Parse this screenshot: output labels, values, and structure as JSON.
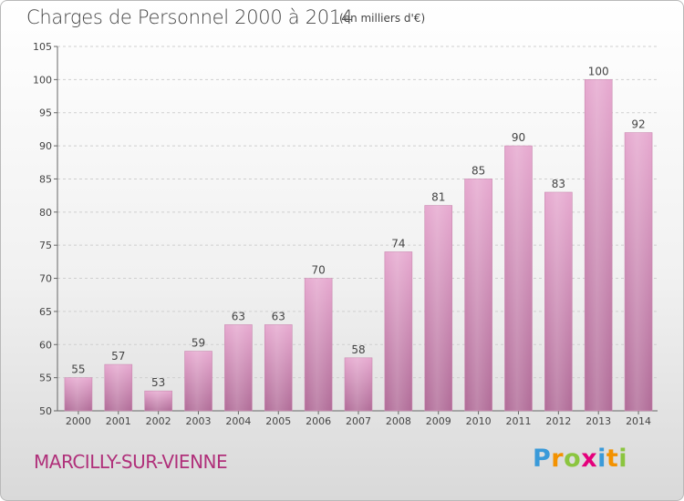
{
  "title": "Charges de Personnel 2000 à 2014",
  "subtitle": "(en milliers d'€)",
  "commune": "MARCILLY-SUR-VIENNE",
  "logo": {
    "letters": [
      "P",
      "r",
      "o",
      "x",
      "i",
      "t",
      "i"
    ],
    "colors": [
      "#3a9ad9",
      "#f39200",
      "#8bc53f",
      "#e4007c",
      "#3a9ad9",
      "#f39200",
      "#8bc53f"
    ]
  },
  "chart_data": {
    "type": "bar",
    "categories": [
      "2000",
      "2001",
      "2002",
      "2003",
      "2004",
      "2005",
      "2006",
      "2007",
      "2008",
      "2009",
      "2010",
      "2011",
      "2012",
      "2013",
      "2014"
    ],
    "values": [
      55,
      57,
      53,
      59,
      63,
      63,
      70,
      58,
      74,
      81,
      85,
      90,
      83,
      100,
      92
    ],
    "title": "Charges de Personnel 2000 à 2014",
    "subtitle": "(en milliers d'€)",
    "xlabel": "",
    "ylabel": "",
    "ylim": [
      50,
      105
    ],
    "yticks": [
      50,
      55,
      60,
      65,
      70,
      75,
      80,
      85,
      90,
      95,
      100,
      105
    ],
    "grid": true,
    "bar_color": "#d98bb8"
  }
}
